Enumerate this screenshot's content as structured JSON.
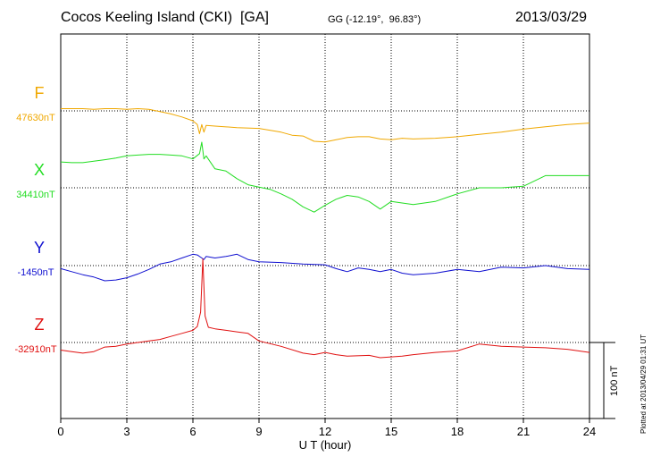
{
  "header": {
    "station": "Cocos Keeling Island (CKI)  [GA]",
    "coords": "GG (-12.19°,  96.83°)",
    "date": "2013/03/29"
  },
  "footer": {
    "plotted": "Plotted at 2013/04/29 01:31  UT"
  },
  "chart_data": {
    "type": "line",
    "xlabel": "U T (hour)",
    "xlim": [
      0,
      24
    ],
    "x_ticks": [
      "0",
      "3",
      "6",
      "9",
      "12",
      "15",
      "18",
      "21",
      "24"
    ],
    "scale_bar": "100 nT",
    "grid": "dotted",
    "colors": {
      "F": "#f0a800",
      "X": "#22dd22",
      "Y": "#1010d0",
      "Z": "#e01010"
    },
    "series": [
      {
        "name": "F",
        "baseline": "47630nT",
        "x": [
          0,
          0.5,
          1,
          1.5,
          2,
          2.5,
          3,
          3.5,
          4,
          4.5,
          5,
          5.5,
          6,
          6.2,
          6.3,
          6.4,
          6.5,
          6.6,
          7,
          8,
          9,
          10,
          10.5,
          11,
          11.5,
          12,
          12.5,
          13,
          13.5,
          14,
          14.5,
          15,
          15.5,
          16,
          17,
          18,
          19,
          20,
          21,
          22,
          23,
          24
        ],
        "y": [
          3,
          3,
          3,
          2,
          3,
          3,
          2,
          3,
          2,
          -1,
          -4,
          -8,
          -13,
          -18,
          -30,
          -18,
          -28,
          -19,
          -20,
          -22,
          -23,
          -28,
          -32,
          -33,
          -40,
          -41,
          -38,
          -35,
          -34,
          -34,
          -37,
          -38,
          -36,
          -37,
          -36,
          -34,
          -31,
          -28,
          -24,
          -21,
          -18,
          -16
        ]
      },
      {
        "name": "X",
        "baseline": "34410nT",
        "x": [
          0,
          0.5,
          1,
          1.5,
          2,
          2.5,
          3,
          3.5,
          4,
          4.5,
          5,
          5.5,
          6,
          6.3,
          6.4,
          6.5,
          6.6,
          7,
          7.5,
          8,
          8.5,
          9,
          9.5,
          10,
          10.5,
          11,
          11.5,
          12,
          12.5,
          13,
          13.5,
          14,
          14.5,
          15,
          15.5,
          16,
          17,
          18,
          19,
          20,
          21,
          22,
          23,
          24
        ],
        "y": [
          34,
          33,
          33,
          35,
          37,
          39,
          42,
          43,
          44,
          44,
          43,
          42,
          38,
          45,
          60,
          38,
          42,
          25,
          22,
          12,
          4,
          1,
          -2,
          -8,
          -15,
          -25,
          -32,
          -23,
          -15,
          -10,
          -12,
          -18,
          -28,
          -18,
          -20,
          -22,
          -18,
          -8,
          0,
          0,
          2,
          16,
          16,
          16
        ]
      },
      {
        "name": "Y",
        "baseline": "-1450nT",
        "x": [
          0,
          0.5,
          1,
          1.5,
          2,
          2.5,
          3,
          3.5,
          4,
          4.5,
          5,
          5.5,
          6,
          6.2,
          6.4,
          6.5,
          6.6,
          7,
          7.5,
          8,
          8.5,
          9,
          10,
          11,
          12,
          12.5,
          13,
          13.5,
          14,
          14.5,
          15,
          15.5,
          16,
          17,
          18,
          19,
          20,
          21,
          22,
          23,
          24
        ],
        "y": [
          -4,
          -8,
          -12,
          -15,
          -20,
          -19,
          -16,
          -11,
          -5,
          2,
          5,
          10,
          15,
          14,
          10,
          8,
          12,
          10,
          12,
          15,
          8,
          5,
          4,
          2,
          1,
          -4,
          -8,
          -3,
          -5,
          -8,
          -5,
          -10,
          -12,
          -10,
          -5,
          -8,
          -2,
          -3,
          0,
          -4,
          -5
        ]
      },
      {
        "name": "Z",
        "baseline": "-32910nT",
        "x": [
          0,
          0.5,
          1,
          1.5,
          2,
          2.5,
          3,
          3.5,
          4,
          4.5,
          5,
          5.5,
          6,
          6.2,
          6.35,
          6.45,
          6.55,
          6.7,
          7,
          7.5,
          8,
          8.5,
          9,
          10,
          11,
          11.5,
          12,
          12.5,
          13,
          14,
          14.5,
          15,
          15.5,
          16,
          17,
          18,
          19,
          20,
          21,
          22,
          23,
          24
        ],
        "y": [
          -10,
          -12,
          -14,
          -12,
          -6,
          -5,
          -2,
          0,
          2,
          4,
          8,
          12,
          16,
          21,
          40,
          110,
          35,
          20,
          18,
          16,
          14,
          12,
          2,
          -5,
          -14,
          -16,
          -13,
          -16,
          -18,
          -17,
          -20,
          -19,
          -18,
          -16,
          -13,
          -11,
          -2,
          -5,
          -6,
          -7,
          -9,
          -13
        ]
      }
    ]
  }
}
